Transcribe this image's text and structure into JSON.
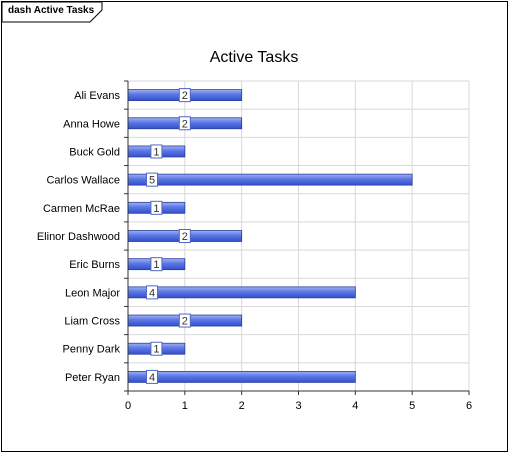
{
  "frame": {
    "tab_label": "dash Active Tasks"
  },
  "chart_data": {
    "type": "bar",
    "orientation": "horizontal",
    "title": "Active Tasks",
    "xlabel": "",
    "ylabel": "",
    "categories": [
      "Ali Evans",
      "Anna Howe",
      "Buck Gold",
      "Carlos Wallace",
      "Carmen McRae",
      "Elinor Dashwood",
      "Eric Burns",
      "Leon Major",
      "Liam Cross",
      "Penny Dark",
      "Peter Ryan"
    ],
    "values": [
      2,
      2,
      1,
      5,
      1,
      2,
      1,
      4,
      2,
      1,
      4
    ],
    "xlim": [
      0,
      6
    ],
    "xticks": [
      0,
      1,
      2,
      3,
      4,
      5,
      6
    ],
    "grid": true,
    "legend": "none",
    "data_labels": true,
    "colors": {
      "bar_fill_top": "#9fb2f2",
      "bar_fill_mid": "#5b76e4",
      "bar_fill_bottom": "#3350cc",
      "bar_stroke": "#2a3f9c",
      "grid": "#d8d8d8",
      "axis": "#333333",
      "label_box_fill": "#ffffff",
      "label_box_stroke": "#4f67c8"
    }
  }
}
